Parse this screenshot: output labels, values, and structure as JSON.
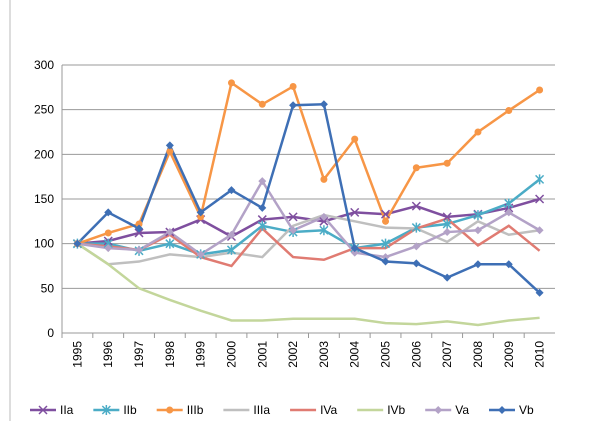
{
  "chart_data": {
    "type": "line",
    "categories": [
      "1995",
      "1996",
      "1997",
      "1998",
      "1999",
      "2000",
      "2001",
      "2002",
      "2003",
      "2004",
      "2005",
      "2006",
      "2007",
      "2008",
      "2009",
      "2010"
    ],
    "ylim": [
      0,
      300
    ],
    "yticks": [
      0,
      50,
      100,
      150,
      200,
      250,
      300
    ],
    "grid": true,
    "legend": "bottom",
    "series": [
      {
        "name": "IIa",
        "color": "#7f4f9f",
        "marker": "x",
        "values": [
          100,
          103,
          112,
          113,
          127,
          108,
          127,
          130,
          125,
          135,
          133,
          142,
          130,
          133,
          140,
          150
        ]
      },
      {
        "name": "IIb",
        "color": "#4bacc6",
        "marker": "star",
        "values": [
          100,
          100,
          92,
          100,
          88,
          93,
          120,
          113,
          115,
          95,
          100,
          118,
          122,
          132,
          145,
          172
        ]
      },
      {
        "name": "IIIb",
        "color": "#f79646",
        "marker": "circle",
        "values": [
          100,
          112,
          122,
          203,
          130,
          280,
          256,
          276,
          172,
          217,
          125,
          185,
          190,
          225,
          249,
          272
        ]
      },
      {
        "name": "IIIa",
        "color": "#bfbfbf",
        "marker": "none",
        "values": [
          100,
          77,
          80,
          88,
          85,
          90,
          85,
          120,
          132,
          125,
          118,
          117,
          102,
          125,
          110,
          115
        ]
      },
      {
        "name": "IVa",
        "color": "#e07b72",
        "marker": "none",
        "values": [
          100,
          97,
          93,
          110,
          85,
          75,
          117,
          85,
          82,
          95,
          95,
          117,
          128,
          98,
          120,
          92
        ]
      },
      {
        "name": "IVb",
        "color": "#c3d69b",
        "marker": "none",
        "values": [
          100,
          77,
          50,
          37,
          25,
          14,
          14,
          16,
          16,
          16,
          11,
          10,
          13,
          9,
          14,
          17
        ]
      },
      {
        "name": "Va",
        "color": "#b3a2c7",
        "marker": "diamond",
        "values": [
          100,
          95,
          93,
          113,
          88,
          110,
          170,
          115,
          130,
          90,
          85,
          97,
          113,
          115,
          135,
          115
        ]
      },
      {
        "name": "Vb",
        "color": "#3e6fb5",
        "marker": "diamond",
        "values": [
          100,
          135,
          117,
          210,
          135,
          160,
          140,
          255,
          256,
          95,
          80,
          78,
          62,
          77,
          77,
          45
        ]
      }
    ]
  }
}
